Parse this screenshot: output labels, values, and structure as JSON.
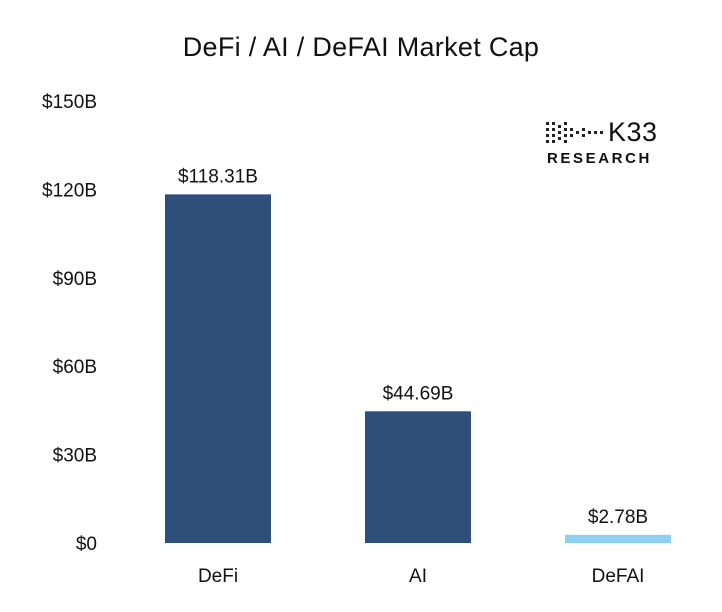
{
  "chart_data": {
    "type": "bar",
    "title": "DeFi / AI / DeFAI Market Cap",
    "categories": [
      "DeFi",
      "AI",
      "DeFAI"
    ],
    "values": [
      118.31,
      44.69,
      2.78
    ],
    "data_labels": [
      "$118.31B",
      "$44.69B",
      "$2.78B"
    ],
    "yticks": [
      0,
      30,
      60,
      90,
      120,
      150
    ],
    "ytick_labels": [
      "$0",
      "$30B",
      "$60B",
      "$90B",
      "$120B",
      "$150B"
    ],
    "ylim": [
      0,
      150
    ],
    "xlabel": "",
    "ylabel": "",
    "grid": false,
    "colors": [
      "#2d4f7a",
      "#2d4f7a",
      "#8fd0f0"
    ]
  },
  "logo": {
    "brand": "K33",
    "sub": "RESEARCH"
  }
}
